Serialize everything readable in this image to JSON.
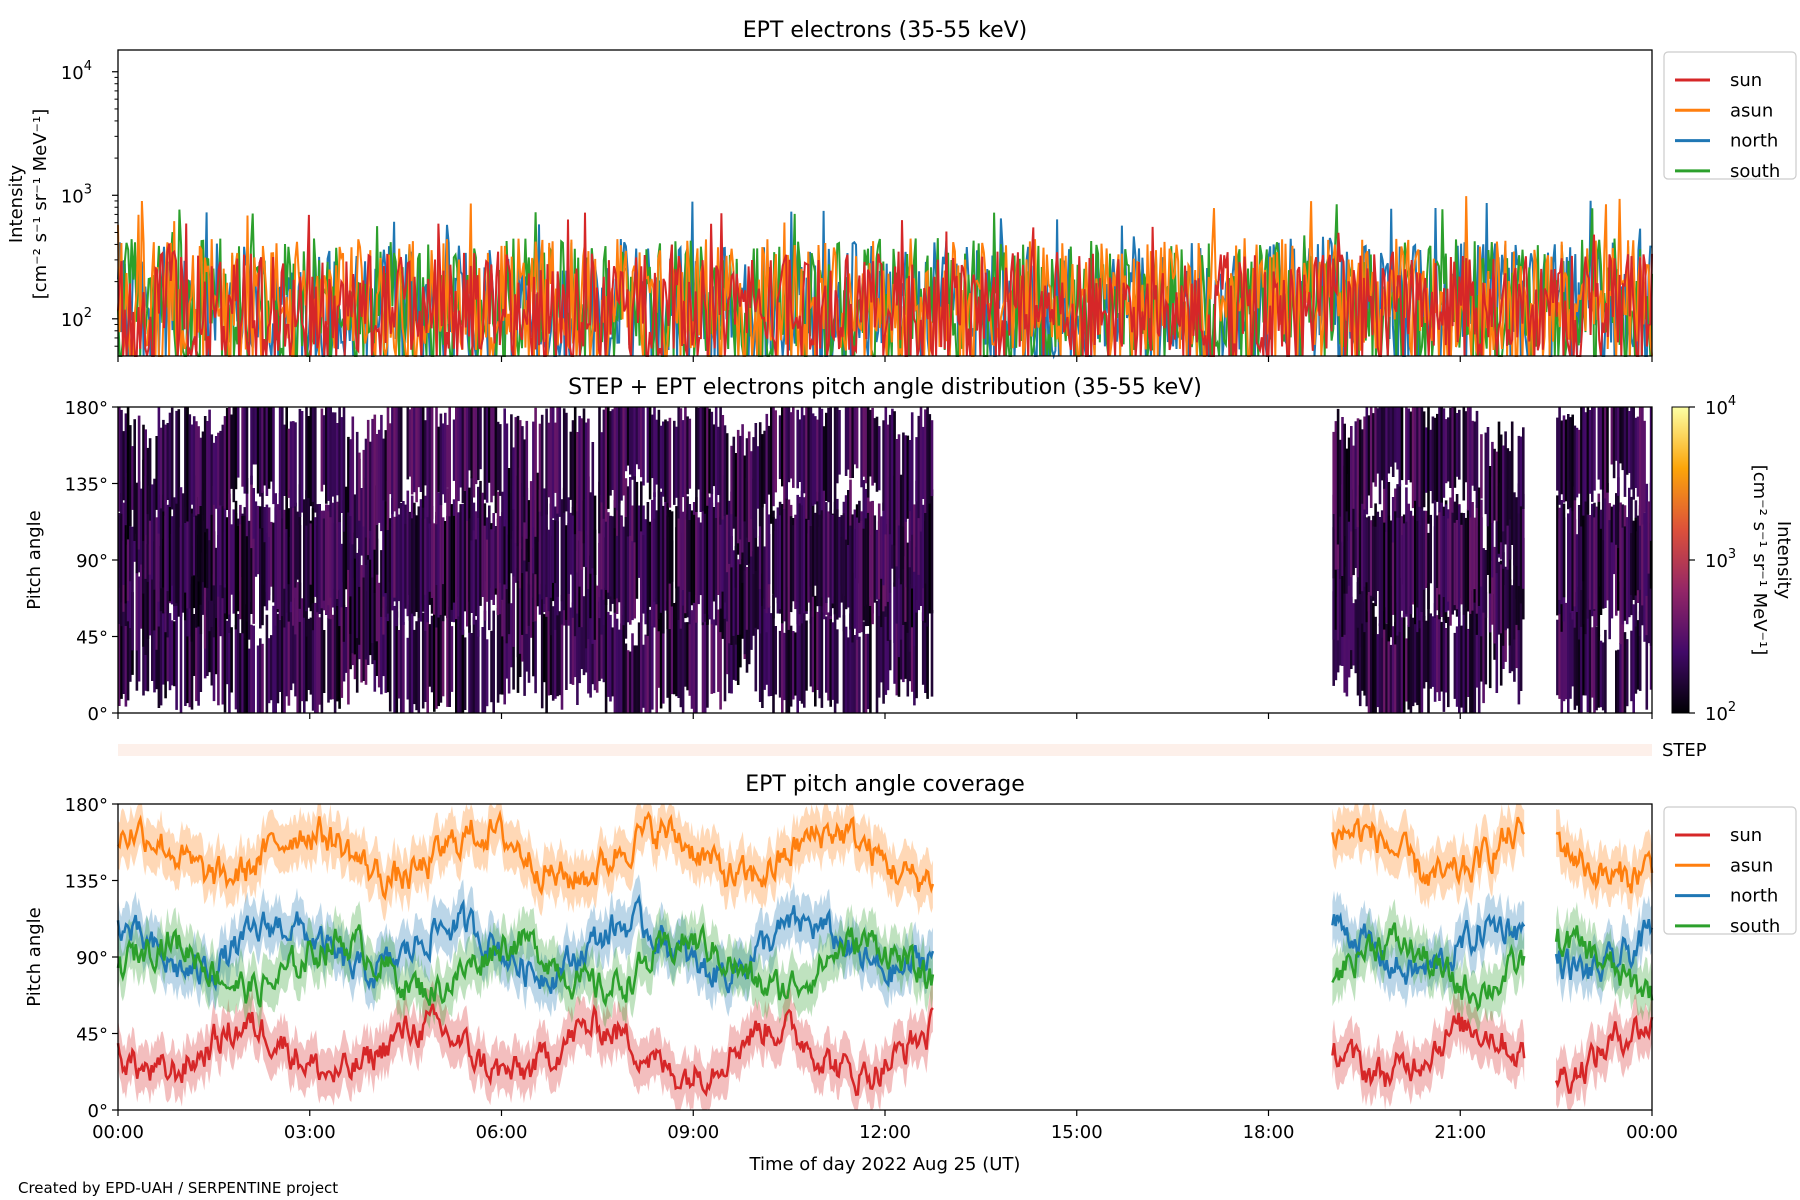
{
  "chart_data": [
    {
      "type": "line",
      "title": "EPT electrons (35-55 keV)",
      "ylabel": [
        "Intensity",
        "[cm⁻² s⁻¹ sr⁻¹ MeV⁻¹]"
      ],
      "y_scale": "log",
      "ylim": [
        50,
        15000
      ],
      "y_ticks": [
        {
          "v": 100,
          "base": "10",
          "exp": "2"
        },
        {
          "v": 1000,
          "base": "10",
          "exp": "3"
        },
        {
          "v": 10000,
          "base": "10",
          "exp": "4"
        }
      ],
      "x_range_hours": [
        0,
        24
      ],
      "legend_position": "outside right",
      "series": [
        {
          "name": "sun",
          "color": "#d62728",
          "typical_range": [
            55,
            350
          ],
          "max_approx": 950
        },
        {
          "name": "asun",
          "color": "#ff7f0e",
          "typical_range": [
            55,
            450
          ],
          "max_approx": 750
        },
        {
          "name": "north",
          "color": "#1f77b4",
          "typical_range": [
            55,
            420
          ],
          "max_approx": 900
        },
        {
          "name": "south",
          "color": "#2ca02c",
          "typical_range": [
            55,
            450
          ],
          "max_approx": 880
        }
      ]
    },
    {
      "type": "heatmap",
      "title": "STEP + EPT electrons pitch angle distribution (35-55 keV)",
      "ylabel": "Pitch angle",
      "ylim": [
        0,
        180
      ],
      "y_ticks": [
        "0°",
        "45°",
        "90°",
        "135°",
        "180°"
      ],
      "colorbar": {
        "label": [
          "Intensity",
          "[cm⁻² s⁻¹ sr⁻¹ MeV⁻¹]"
        ],
        "scale": "log",
        "range": [
          100,
          10000
        ],
        "ticks": [
          {
            "base": "10",
            "exp": "2"
          },
          {
            "base": "10",
            "exp": "3"
          },
          {
            "base": "10",
            "exp": "4"
          }
        ],
        "colors": [
          "#000004",
          "#420a68",
          "#932667",
          "#dd513a",
          "#fca50a",
          "#fcffa4"
        ]
      },
      "data_intervals_hours": [
        [
          0,
          12.75
        ],
        [
          19.0,
          22.0
        ],
        [
          22.5,
          24
        ]
      ],
      "typical_intensity_range": [
        100,
        400
      ]
    },
    {
      "type": "bar",
      "label": "STEP",
      "color": "#fdf0ea"
    },
    {
      "type": "line",
      "title": "EPT pitch angle coverage",
      "ylabel": "Pitch angle",
      "ylim": [
        0,
        180
      ],
      "y_ticks": [
        "0°",
        "45°",
        "90°",
        "135°",
        "180°"
      ],
      "xlabel": "Time of day 2022 Aug 25 (UT)",
      "x_ticks": [
        "00:00",
        "03:00",
        "06:00",
        "09:00",
        "12:00",
        "15:00",
        "18:00",
        "21:00",
        "00:00"
      ],
      "data_intervals_hours": [
        [
          0,
          12.75
        ],
        [
          19.0,
          22.0
        ],
        [
          22.5,
          24
        ]
      ],
      "legend_position": "outside right",
      "series": [
        {
          "name": "sun",
          "color": "#d62728",
          "mean_pitch_angle": 35,
          "spread": 20
        },
        {
          "name": "asun",
          "color": "#ff7f0e",
          "mean_pitch_angle": 150,
          "spread": 20
        },
        {
          "name": "north",
          "color": "#1f77b4",
          "mean_pitch_angle": 95,
          "spread": 20
        },
        {
          "name": "south",
          "color": "#2ca02c",
          "mean_pitch_angle": 85,
          "spread": 20
        }
      ]
    }
  ],
  "footer": "Created by EPD-UAH / SERPENTINE project"
}
